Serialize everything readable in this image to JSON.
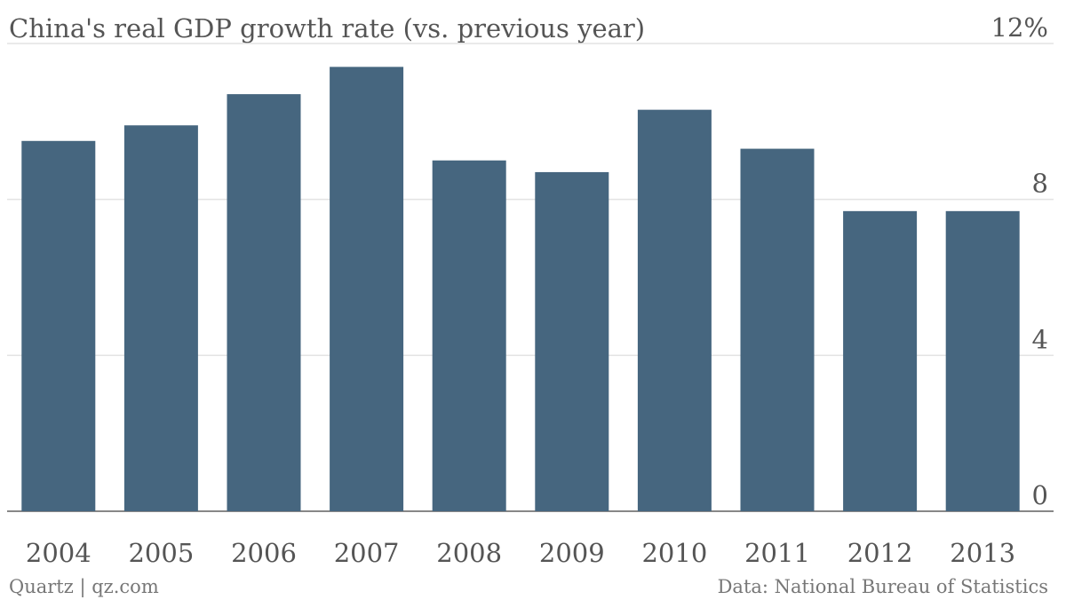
{
  "chart_data": {
    "type": "bar",
    "title": "China's real GDP growth rate (vs. previous year)",
    "categories": [
      "2004",
      "2005",
      "2006",
      "2007",
      "2008",
      "2009",
      "2010",
      "2011",
      "2012",
      "2013"
    ],
    "values": [
      9.5,
      9.9,
      10.7,
      11.4,
      9.0,
      8.7,
      10.3,
      9.3,
      7.7,
      7.7
    ],
    "color": "#46667f",
    "ylim": [
      0,
      12
    ],
    "yticks": [
      0,
      4,
      8,
      {
        "value": 12,
        "label": "12%"
      }
    ],
    "grid": true,
    "source": "Data: National Bureau of Statistics",
    "credit": "Quartz | qz.com"
  }
}
